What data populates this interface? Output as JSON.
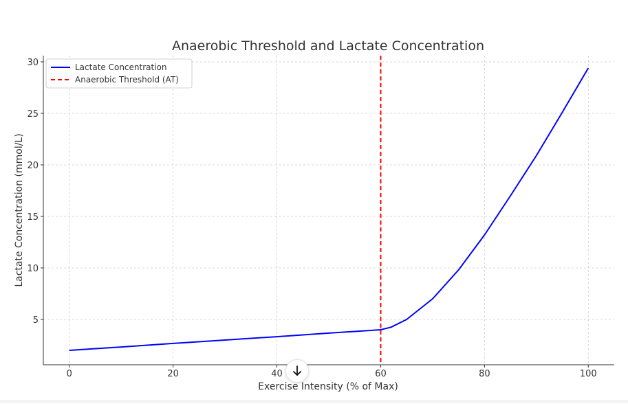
{
  "chart_data": {
    "type": "line",
    "title": "Anaerobic Threshold and Lactate Concentration",
    "xlabel": "Exercise Intensity (% of Max)",
    "ylabel": "Lactate Concentration (mmol/L)",
    "xlim": [
      -5,
      105
    ],
    "ylim": [
      0.6,
      30.6
    ],
    "xticks": [
      0,
      20,
      40,
      60,
      80,
      100
    ],
    "yticks": [
      5,
      10,
      15,
      20,
      25,
      30
    ],
    "grid": true,
    "legend_position": "top-left",
    "series": [
      {
        "name": "Lactate Concentration",
        "color": "#0000ff",
        "style": "solid",
        "x": [
          0,
          10,
          20,
          30,
          40,
          50,
          60,
          62,
          65,
          70,
          75,
          80,
          85,
          90,
          95,
          100
        ],
        "y": [
          2.0,
          2.33,
          2.67,
          3.0,
          3.33,
          3.67,
          4.0,
          4.25,
          5.0,
          7.0,
          9.8,
          13.2,
          17.0,
          20.9,
          25.1,
          29.4
        ]
      },
      {
        "name": "Anaerobic Threshold (AT)",
        "color": "#ff0000",
        "style": "dashed",
        "vline_x": 60
      }
    ]
  },
  "ui": {
    "scroll_button_icon": "arrow-down-icon"
  }
}
